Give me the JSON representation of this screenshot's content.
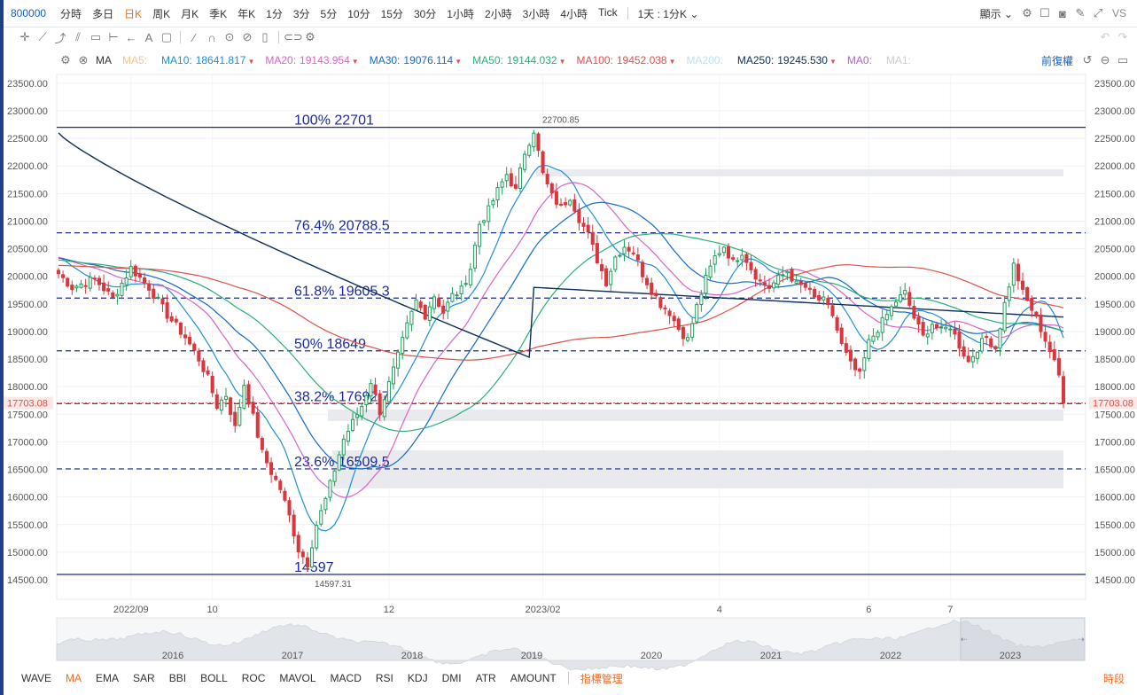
{
  "topbar": {
    "symbol": "800000",
    "periods": [
      "分時",
      "多日",
      "日K",
      "周K",
      "月K",
      "季K",
      "年K",
      "1分",
      "3分",
      "5分",
      "10分",
      "15分",
      "30分",
      "1小時",
      "2小時",
      "3小時",
      "4小時",
      "Tick"
    ],
    "active_period": "日K",
    "interval": "1天 : 1分K",
    "display": "顯示",
    "vs": "VS"
  },
  "mabar": {
    "ma_label": "MA",
    "items": [
      {
        "label": "MA5:",
        "value": "",
        "color": "#f6c58a"
      },
      {
        "label": "MA10:",
        "value": "18641.817",
        "color": "#1e8fd6"
      },
      {
        "label": "MA20:",
        "value": "19143.954",
        "color": "#d864c8"
      },
      {
        "label": "MA30:",
        "value": "19076.114",
        "color": "#1469c8"
      },
      {
        "label": "MA50:",
        "value": "19144.032",
        "color": "#2aae77"
      },
      {
        "label": "MA100:",
        "value": "19452.038",
        "color": "#e0504a"
      },
      {
        "label": "MA200:",
        "value": "",
        "color": "#b8e3f2"
      },
      {
        "label": "MA250:",
        "value": "19245.530",
        "color": "#0d2e57"
      },
      {
        "label": "MA0:",
        "value": "",
        "color": "#a768c8"
      },
      {
        "label": "MA1:",
        "value": "",
        "color": "#cccccc"
      }
    ],
    "adjust": "前復權"
  },
  "bottom": {
    "indicators": [
      "WAVE",
      "MA",
      "EMA",
      "SAR",
      "BBI",
      "BOLL",
      "ROC",
      "MAVOL",
      "MACD",
      "RSI",
      "KDJ",
      "DMI",
      "ATR",
      "AMOUNT"
    ],
    "active": "MA",
    "manage": "指標管理",
    "segment": "時段"
  },
  "chart_data": {
    "type": "candlestick",
    "y_ticks": [
      23500,
      23000,
      22500,
      22000,
      21500,
      21000,
      20500,
      20000,
      19500,
      19000,
      18500,
      18000,
      17500,
      17000,
      16500,
      16000,
      15500,
      15000,
      14500
    ],
    "ylim": [
      14100,
      23800
    ],
    "x_ticks": [
      {
        "label": "2022/09",
        "i": 16
      },
      {
        "label": "10",
        "i": 34
      },
      {
        "label": "12",
        "i": 73
      },
      {
        "label": "2023/02",
        "i": 107
      },
      {
        "label": "4",
        "i": 146
      },
      {
        "label": "6",
        "i": 179
      },
      {
        "label": "7",
        "i": 197
      }
    ],
    "bar_count": 223,
    "last_price": "17703.08",
    "last_value": 17703.08,
    "high_label": "22700.85",
    "high": 22700.85,
    "low_label": "14597.31",
    "low": 14597.31,
    "fib_levels": [
      {
        "label": "100% 22701",
        "value": 22701,
        "style": "solid"
      },
      {
        "label": "76.4% 20788.5",
        "value": 20788.5,
        "style": "dashed"
      },
      {
        "label": "61.8% 19605.3",
        "value": 19605.3,
        "style": "dashed"
      },
      {
        "label": "50% 18649",
        "value": 18649,
        "style": "dashed"
      },
      {
        "label": "38.2% 17692.7",
        "value": 17692.7,
        "style": "dashed"
      },
      {
        "label": "23.6% 16509.5",
        "value": 16509.5,
        "style": "dashed"
      },
      {
        "label": "14597",
        "value": 14597,
        "style": "solid"
      }
    ],
    "anchors": [
      [
        0,
        20050
      ],
      [
        3,
        19800
      ],
      [
        8,
        19950
      ],
      [
        12,
        19600
      ],
      [
        16,
        20150
      ],
      [
        20,
        19800
      ],
      [
        24,
        19300
      ],
      [
        28,
        18900
      ],
      [
        31,
        18500
      ],
      [
        33,
        18150
      ],
      [
        35,
        17650
      ],
      [
        37,
        17850
      ],
      [
        39,
        17250
      ],
      [
        41,
        18050
      ],
      [
        43,
        17450
      ],
      [
        45,
        16800
      ],
      [
        47,
        16450
      ],
      [
        49,
        16150
      ],
      [
        51,
        15650
      ],
      [
        53,
        15050
      ],
      [
        55,
        14800
      ],
      [
        57,
        15500
      ],
      [
        59,
        15950
      ],
      [
        61,
        16500
      ],
      [
        63,
        17050
      ],
      [
        65,
        17350
      ],
      [
        67,
        17650
      ],
      [
        69,
        18100
      ],
      [
        71,
        17550
      ],
      [
        73,
        18050
      ],
      [
        75,
        18550
      ],
      [
        77,
        19100
      ],
      [
        79,
        19550
      ],
      [
        81,
        19300
      ],
      [
        83,
        19650
      ],
      [
        85,
        19350
      ],
      [
        87,
        19650
      ],
      [
        89,
        19750
      ],
      [
        91,
        20150
      ],
      [
        93,
        20950
      ],
      [
        95,
        21200
      ],
      [
        97,
        21550
      ],
      [
        99,
        21850
      ],
      [
        101,
        21550
      ],
      [
        103,
        22250
      ],
      [
        105,
        22650
      ],
      [
        107,
        21850
      ],
      [
        109,
        21450
      ],
      [
        111,
        21250
      ],
      [
        113,
        21450
      ],
      [
        115,
        21050
      ],
      [
        117,
        20750
      ],
      [
        119,
        20300
      ],
      [
        121,
        19900
      ],
      [
        123,
        20350
      ],
      [
        125,
        20550
      ],
      [
        127,
        20450
      ],
      [
        129,
        20050
      ],
      [
        131,
        19750
      ],
      [
        133,
        19500
      ],
      [
        135,
        19350
      ],
      [
        137,
        19050
      ],
      [
        139,
        18850
      ],
      [
        141,
        19450
      ],
      [
        143,
        19950
      ],
      [
        145,
        20350
      ],
      [
        147,
        20550
      ],
      [
        149,
        20250
      ],
      [
        151,
        20450
      ],
      [
        153,
        20150
      ],
      [
        155,
        19900
      ],
      [
        157,
        19800
      ],
      [
        159,
        19950
      ],
      [
        161,
        20100
      ],
      [
        163,
        19850
      ],
      [
        165,
        19800
      ],
      [
        167,
        19600
      ],
      [
        169,
        19550
      ],
      [
        171,
        19300
      ],
      [
        173,
        18750
      ],
      [
        175,
        18400
      ],
      [
        177,
        18200
      ],
      [
        179,
        18800
      ],
      [
        181,
        19050
      ],
      [
        183,
        19300
      ],
      [
        185,
        19550
      ],
      [
        187,
        19700
      ],
      [
        189,
        19250
      ],
      [
        191,
        18900
      ],
      [
        193,
        19150
      ],
      [
        195,
        19000
      ],
      [
        197,
        19100
      ],
      [
        199,
        18750
      ],
      [
        201,
        18450
      ],
      [
        203,
        18700
      ],
      [
        205,
        18900
      ],
      [
        207,
        18700
      ],
      [
        209,
        19500
      ],
      [
        211,
        20200
      ],
      [
        213,
        19700
      ],
      [
        215,
        19400
      ],
      [
        217,
        19050
      ],
      [
        219,
        18650
      ],
      [
        221,
        18200
      ],
      [
        222,
        17703
      ]
    ]
  }
}
